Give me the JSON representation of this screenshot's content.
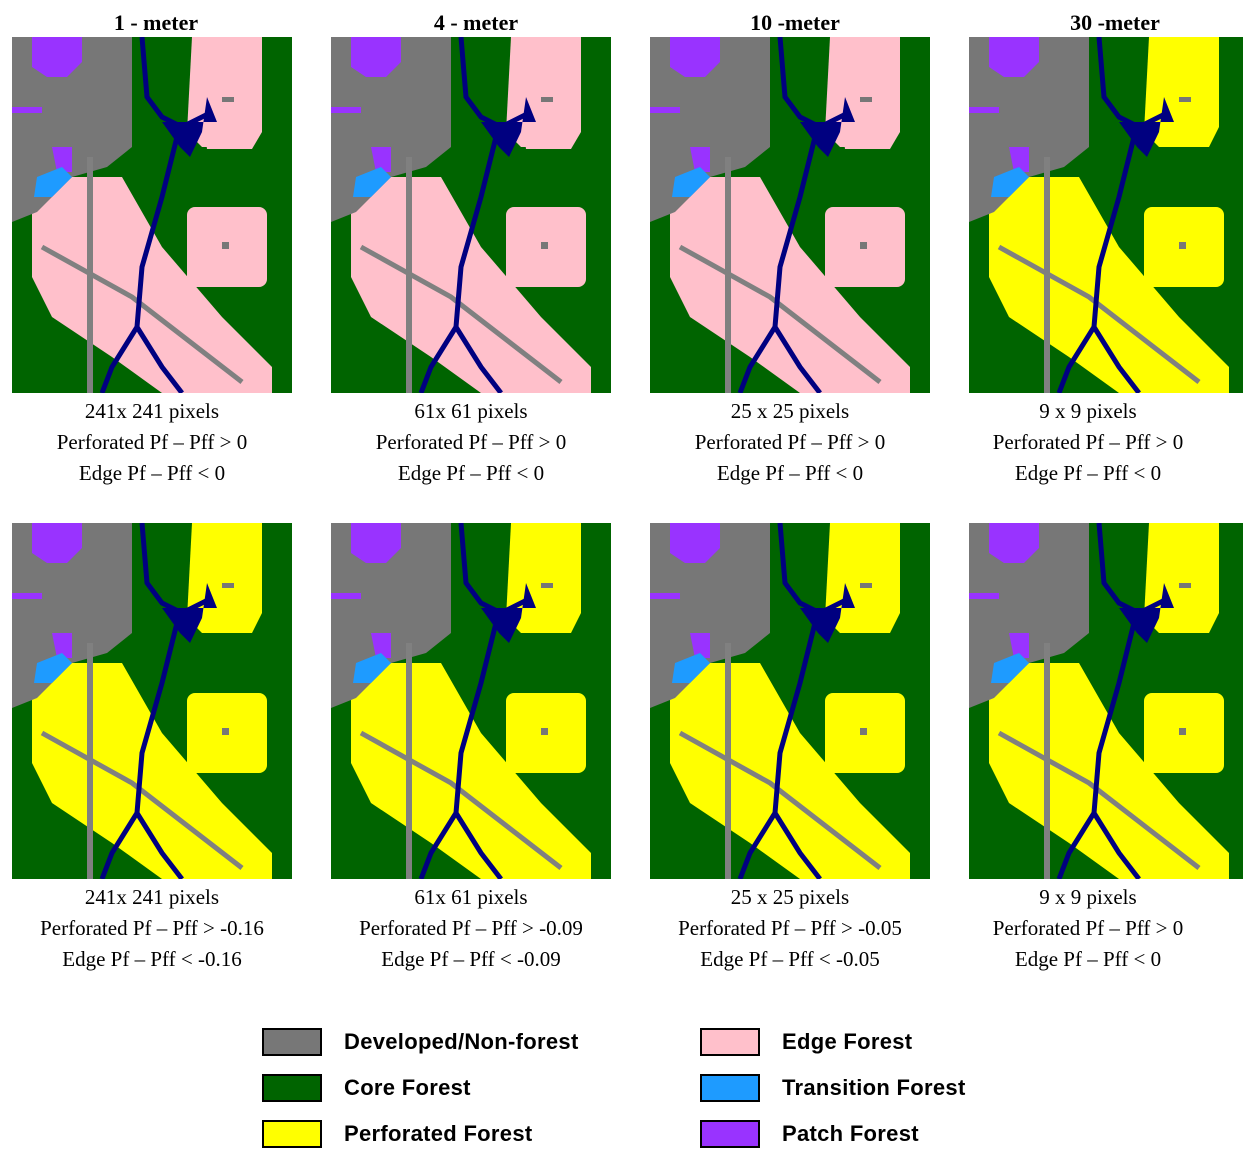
{
  "columns": [
    {
      "title": "1 - meter"
    },
    {
      "title": "4 - meter"
    },
    {
      "title": "10 -meter"
    },
    {
      "title": "30 -meter"
    }
  ],
  "rows": [
    {
      "captions": [
        {
          "size": "241x 241 pixels",
          "perforated": "Perforated Pf – Pff > 0",
          "edge": "Edge Pf – Pff < 0"
        },
        {
          "size": "61x 61 pixels",
          "perforated": "Perforated Pf – Pff > 0",
          "edge": "Edge Pf – Pff < 0"
        },
        {
          "size": "25 x 25 pixels",
          "perforated": "Perforated Pf – Pff > 0",
          "edge": "Edge Pf – Pff < 0"
        },
        {
          "size": "9 x 9 pixels",
          "perforated": "Perforated Pf – Pff > 0",
          "edge": "Edge Pf – Pff < 0"
        }
      ]
    },
    {
      "captions": [
        {
          "size": "241x 241 pixels",
          "perforated": "Perforated Pf – Pff > -0.16",
          "edge": "Edge Pf – Pff < -0.16"
        },
        {
          "size": "61x 61 pixels",
          "perforated": "Perforated Pf – Pff > -0.09",
          "edge": "Edge Pf – Pff < -0.09"
        },
        {
          "size": "25 x 25 pixels",
          "perforated": "Perforated Pf – Pff > -0.05",
          "edge": "Edge Pf – Pff < -0.05"
        },
        {
          "size": "9 x 9 pixels",
          "perforated": "Perforated Pf – Pff > 0",
          "edge": "Edge Pf – Pff < 0"
        }
      ]
    }
  ],
  "legend": [
    {
      "label": "Developed/Non-forest",
      "color": "#777777"
    },
    {
      "label": "Core Forest",
      "color": "#006400"
    },
    {
      "label": "Perforated Forest",
      "color": "#ffff00"
    },
    {
      "label": "Edge Forest",
      "color": "#ffc0cb"
    },
    {
      "label": "Transition Forest",
      "color": "#1e9bff"
    },
    {
      "label": "Patch Forest",
      "color": "#9933ff"
    }
  ],
  "colors": {
    "developed": "#777777",
    "core": "#006400",
    "perforated": "#ffff00",
    "edge": "#ffc0cb",
    "transition": "#1e9bff",
    "patch": "#9933ff",
    "water": "#000080",
    "road": "#808080"
  }
}
